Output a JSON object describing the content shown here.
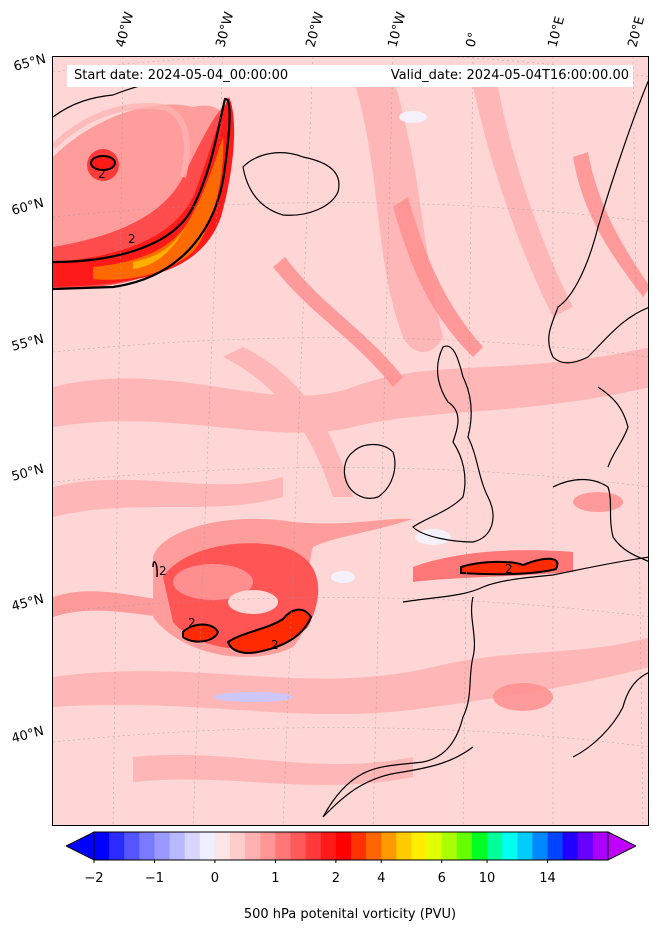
{
  "map": {
    "start_date": "Start date: 2024-05-04_00:00:00",
    "valid_date": "Valid_date: 2024-05-04T16:00:00.00",
    "longitude_labels": [
      "40°W",
      "30°W",
      "20°W",
      "10°W",
      "0°",
      "10°E",
      "20°E"
    ],
    "latitude_labels": [
      "65°N",
      "60°N",
      "55°N",
      "50°N",
      "45°N",
      "40°N"
    ],
    "contour_labels": [
      "2",
      "2",
      "2",
      "2",
      "2",
      "2"
    ],
    "contour_value": 2,
    "colors": {
      "background": "#ffd6d6",
      "ocean_light": "#ffc4c4",
      "mid": "#ff8a8a",
      "high": "#ff3b3b",
      "max": "#ff0000",
      "orange": "#ff9a00",
      "land_outline": "#000000"
    }
  },
  "colorbar": {
    "label": "500 hPa potenital vorticity (PVU)",
    "ticks": [
      "−2",
      "−1",
      "0",
      "1",
      "2",
      "4",
      "6",
      "10",
      "14"
    ],
    "tick_values": [
      -2,
      -1,
      0,
      1,
      2,
      4,
      6,
      10,
      14
    ],
    "colors": [
      "#0000ff",
      "#2b2bff",
      "#5555ff",
      "#7a7aff",
      "#9999ff",
      "#b8b8ff",
      "#d6d6ff",
      "#efefff",
      "#ffe6e6",
      "#ffcccc",
      "#ffb0b0",
      "#ff9595",
      "#ff7676",
      "#ff5a5a",
      "#ff3a3a",
      "#ff1a1a",
      "#ff0000",
      "#ff3300",
      "#ff6600",
      "#ff9900",
      "#ffcc00",
      "#ffee00",
      "#e0ff00",
      "#aaff00",
      "#66ff00",
      "#00ff22",
      "#00ff99",
      "#00ffee",
      "#00ccff",
      "#0088ff",
      "#0044ff",
      "#2200ff",
      "#6600ff",
      "#aa00ff"
    ],
    "extend_min_color": "#0000ff",
    "extend_max_color": "#c000ff"
  }
}
